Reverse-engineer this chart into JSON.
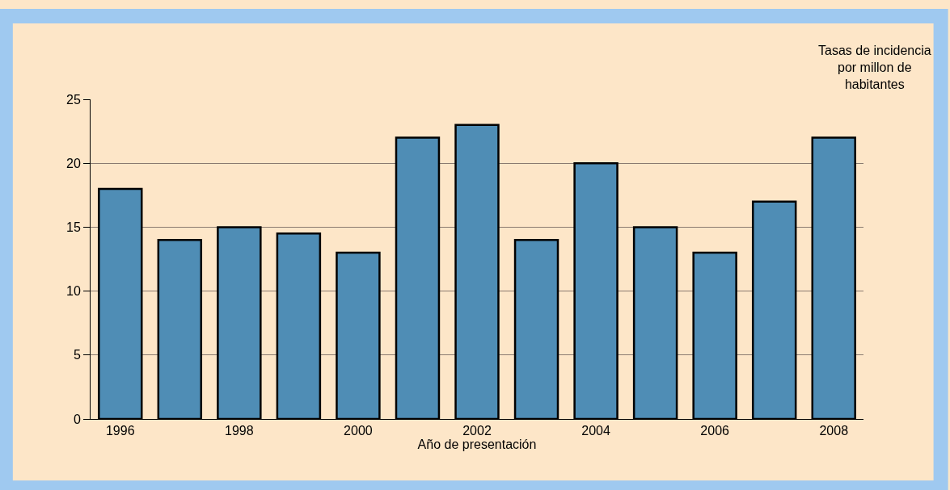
{
  "chart_data": {
    "type": "bar",
    "xlabel": "Año de presentación",
    "ylabel": "Tasas de incidencia\npor millon de\nhabitantes",
    "categories": [
      "1996",
      null,
      "1998",
      null,
      "2000",
      null,
      "2002",
      null,
      "2004",
      null,
      "2006",
      null,
      "2008"
    ],
    "values": [
      18,
      14,
      15,
      14.5,
      13,
      22,
      23,
      14,
      20,
      15,
      13,
      17,
      22
    ],
    "color": "#4f8db5",
    "ylim": [
      0,
      25
    ],
    "yticks": [
      0,
      5,
      10,
      15,
      20,
      25
    ],
    "grid": "y",
    "legend": false
  }
}
